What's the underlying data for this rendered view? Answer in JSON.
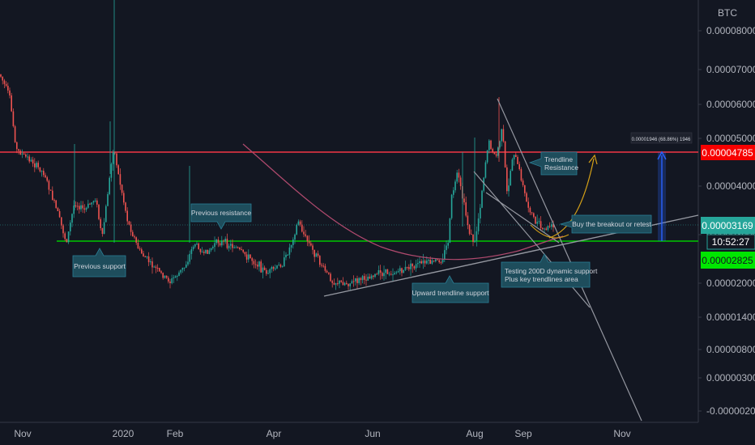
{
  "chart_data": {
    "type": "candlestick",
    "symbol_unit": "BTC",
    "y_ticks": [
      "0.00008000",
      "0.00007000",
      "0.00006000",
      "0.00005000",
      "0.00004000",
      "0.00003000",
      "0.00002000",
      "0.00001400",
      "0.00000800",
      "0.00000300",
      "-0.00000200"
    ],
    "y_tick_values": [
      8e-05,
      7e-05,
      6e-05,
      5e-05,
      4e-05,
      3e-05,
      2e-05,
      1.4e-05,
      8e-06,
      3e-06,
      -2e-06
    ],
    "x_ticks": [
      "Nov",
      "2020",
      "Feb",
      "Apr",
      "Jun",
      "Aug",
      "Sep",
      "Nov"
    ],
    "price_tags": {
      "resistance": {
        "label": "0.00004785",
        "color": "#f70000"
      },
      "last": {
        "label": "0.00003169",
        "color": "#26a69a"
      },
      "countdown": {
        "label": "10:52:27",
        "color": "#26a69a"
      },
      "support": {
        "label": "0.00002825",
        "color": "#00e600"
      }
    },
    "measure_label": "0.00001946 (68.86%) 1946",
    "annotations": {
      "previous_support": "Previous support",
      "previous_resistance": "Previous resistance",
      "upward_trendline": "Upward trendline support",
      "trendline_resistance_1": "Trendline",
      "trendline_resistance_2": "Resistance",
      "buy_breakout": "Buy the breakout or retest",
      "testing_200d_1": "Testing 200D dynamic support",
      "testing_200d_2": "Plus key trendlines area"
    },
    "grid": false,
    "colors": {
      "up": "#26a69a",
      "down": "#ef5350",
      "background": "#131722"
    }
  }
}
